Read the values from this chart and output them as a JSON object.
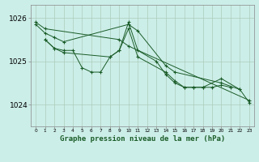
{
  "background_color": "#cceee8",
  "grid_color": "#aaccbb",
  "line_color": "#1a5c28",
  "xlabel": "Graphe pression niveau de la mer (hPa)",
  "ylim": [
    1023.5,
    1026.3
  ],
  "yticks": [
    1024,
    1025,
    1026
  ],
  "xlim": [
    -0.5,
    23.5
  ],
  "series": [
    {
      "x": [
        0,
        1,
        9,
        10,
        23
      ],
      "y": [
        1025.9,
        1025.75,
        1025.5,
        1025.35,
        1024.1
      ]
    },
    {
      "x": [
        0,
        1,
        2,
        3,
        10,
        11,
        14,
        15,
        20,
        22,
        23
      ],
      "y": [
        1025.85,
        1025.65,
        1025.55,
        1025.45,
        1025.85,
        1025.7,
        1024.9,
        1024.75,
        1024.5,
        1024.35,
        1024.05
      ]
    },
    {
      "x": [
        1,
        2,
        3,
        4,
        5,
        6,
        7,
        8,
        9,
        10,
        11,
        13,
        14,
        15,
        16,
        17,
        18,
        19,
        20,
        21
      ],
      "y": [
        1025.5,
        1025.3,
        1025.25,
        1025.25,
        1024.85,
        1024.75,
        1024.75,
        1025.1,
        1025.25,
        1025.9,
        1025.25,
        1025.0,
        1024.7,
        1024.5,
        1024.4,
        1024.4,
        1024.4,
        1024.4,
        1024.45,
        1024.4
      ]
    },
    {
      "x": [
        1,
        2,
        3,
        8,
        9,
        10,
        11,
        14,
        15,
        16,
        17,
        18,
        20,
        22
      ],
      "y": [
        1025.5,
        1025.3,
        1025.2,
        1025.1,
        1025.25,
        1025.75,
        1025.1,
        1024.75,
        1024.55,
        1024.4,
        1024.4,
        1024.4,
        1024.6,
        1024.35
      ]
    }
  ]
}
